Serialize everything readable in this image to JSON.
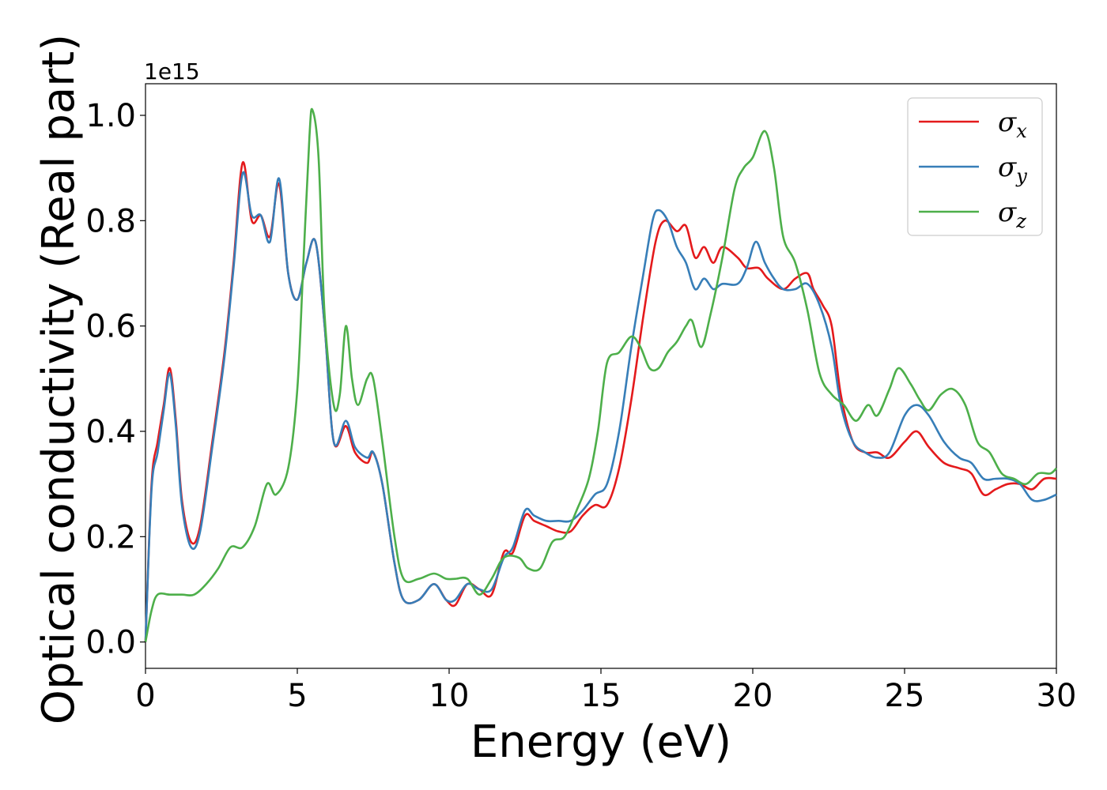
{
  "chart_data": {
    "type": "line",
    "title": "",
    "xlabel": "Energy (eV)",
    "ylabel": "Optical conductivity (Real part)",
    "y_offset_text": "1e15",
    "xlim": [
      0,
      30
    ],
    "ylim": [
      -0.05,
      1.06
    ],
    "x_ticks": [
      0,
      5,
      10,
      15,
      20,
      25,
      30
    ],
    "x_tick_labels": [
      "0",
      "5",
      "10",
      "15",
      "20",
      "25",
      "30"
    ],
    "y_ticks": [
      0.0,
      0.2,
      0.4,
      0.6,
      0.8,
      1.0
    ],
    "y_tick_labels": [
      "0.0",
      "0.2",
      "0.4",
      "0.6",
      "0.8",
      "1.0"
    ],
    "grid": false,
    "legend_position": "top-right",
    "series": [
      {
        "name": "σx",
        "legend_symbol": "σ",
        "legend_subscript": "x",
        "color": "#e41a1c",
        "points": [
          [
            0,
            0
          ],
          [
            0.2,
            0.3
          ],
          [
            0.4,
            0.38
          ],
          [
            0.6,
            0.45
          ],
          [
            0.8,
            0.52
          ],
          [
            1.0,
            0.42
          ],
          [
            1.2,
            0.27
          ],
          [
            1.5,
            0.19
          ],
          [
            1.8,
            0.22
          ],
          [
            2.2,
            0.38
          ],
          [
            2.6,
            0.55
          ],
          [
            2.9,
            0.72
          ],
          [
            3.2,
            0.91
          ],
          [
            3.5,
            0.8
          ],
          [
            3.8,
            0.81
          ],
          [
            4.1,
            0.77
          ],
          [
            4.4,
            0.87
          ],
          [
            4.7,
            0.7
          ],
          [
            5.0,
            0.65
          ],
          [
            5.3,
            0.72
          ],
          [
            5.6,
            0.76
          ],
          [
            5.9,
            0.6
          ],
          [
            6.2,
            0.38
          ],
          [
            6.6,
            0.41
          ],
          [
            6.9,
            0.36
          ],
          [
            7.3,
            0.34
          ],
          [
            7.5,
            0.36
          ],
          [
            7.8,
            0.3
          ],
          [
            8.2,
            0.15
          ],
          [
            8.5,
            0.08
          ],
          [
            9.0,
            0.08
          ],
          [
            9.5,
            0.11
          ],
          [
            9.9,
            0.08
          ],
          [
            10.2,
            0.07
          ],
          [
            10.6,
            0.11
          ],
          [
            11.0,
            0.1
          ],
          [
            11.4,
            0.09
          ],
          [
            11.8,
            0.17
          ],
          [
            12.1,
            0.17
          ],
          [
            12.5,
            0.24
          ],
          [
            12.8,
            0.23
          ],
          [
            13.2,
            0.22
          ],
          [
            13.6,
            0.21
          ],
          [
            14.0,
            0.21
          ],
          [
            14.4,
            0.24
          ],
          [
            14.8,
            0.26
          ],
          [
            15.2,
            0.26
          ],
          [
            15.6,
            0.33
          ],
          [
            16.0,
            0.46
          ],
          [
            16.4,
            0.62
          ],
          [
            16.8,
            0.76
          ],
          [
            17.1,
            0.8
          ],
          [
            17.5,
            0.78
          ],
          [
            17.8,
            0.79
          ],
          [
            18.1,
            0.73
          ],
          [
            18.4,
            0.75
          ],
          [
            18.7,
            0.72
          ],
          [
            19.0,
            0.75
          ],
          [
            19.5,
            0.73
          ],
          [
            19.8,
            0.71
          ],
          [
            20.2,
            0.71
          ],
          [
            20.5,
            0.69
          ],
          [
            21.0,
            0.67
          ],
          [
            21.4,
            0.69
          ],
          [
            21.8,
            0.7
          ],
          [
            22.0,
            0.67
          ],
          [
            22.3,
            0.64
          ],
          [
            22.6,
            0.6
          ],
          [
            22.9,
            0.47
          ],
          [
            23.3,
            0.38
          ],
          [
            23.7,
            0.36
          ],
          [
            24.1,
            0.36
          ],
          [
            24.5,
            0.35
          ],
          [
            25.0,
            0.38
          ],
          [
            25.4,
            0.4
          ],
          [
            25.8,
            0.37
          ],
          [
            26.3,
            0.34
          ],
          [
            26.8,
            0.33
          ],
          [
            27.2,
            0.32
          ],
          [
            27.6,
            0.28
          ],
          [
            28.0,
            0.29
          ],
          [
            28.4,
            0.3
          ],
          [
            28.8,
            0.3
          ],
          [
            29.2,
            0.29
          ],
          [
            29.6,
            0.31
          ],
          [
            30.0,
            0.31
          ]
        ]
      },
      {
        "name": "σy",
        "legend_symbol": "σ",
        "legend_subscript": "y",
        "color": "#377eb8",
        "points": [
          [
            0,
            0
          ],
          [
            0.2,
            0.29
          ],
          [
            0.4,
            0.36
          ],
          [
            0.6,
            0.44
          ],
          [
            0.8,
            0.51
          ],
          [
            1.0,
            0.41
          ],
          [
            1.2,
            0.26
          ],
          [
            1.5,
            0.18
          ],
          [
            1.8,
            0.21
          ],
          [
            2.2,
            0.37
          ],
          [
            2.6,
            0.54
          ],
          [
            2.9,
            0.71
          ],
          [
            3.2,
            0.89
          ],
          [
            3.5,
            0.81
          ],
          [
            3.8,
            0.81
          ],
          [
            4.1,
            0.76
          ],
          [
            4.4,
            0.88
          ],
          [
            4.7,
            0.7
          ],
          [
            5.0,
            0.65
          ],
          [
            5.3,
            0.72
          ],
          [
            5.6,
            0.76
          ],
          [
            5.9,
            0.6
          ],
          [
            6.2,
            0.38
          ],
          [
            6.6,
            0.42
          ],
          [
            6.9,
            0.37
          ],
          [
            7.3,
            0.35
          ],
          [
            7.5,
            0.36
          ],
          [
            7.8,
            0.3
          ],
          [
            8.2,
            0.15
          ],
          [
            8.5,
            0.08
          ],
          [
            9.0,
            0.08
          ],
          [
            9.5,
            0.11
          ],
          [
            9.9,
            0.08
          ],
          [
            10.2,
            0.08
          ],
          [
            10.6,
            0.11
          ],
          [
            11.0,
            0.1
          ],
          [
            11.4,
            0.1
          ],
          [
            11.8,
            0.16
          ],
          [
            12.1,
            0.18
          ],
          [
            12.5,
            0.25
          ],
          [
            12.8,
            0.24
          ],
          [
            13.2,
            0.23
          ],
          [
            13.6,
            0.23
          ],
          [
            14.0,
            0.23
          ],
          [
            14.4,
            0.25
          ],
          [
            14.8,
            0.28
          ],
          [
            15.2,
            0.3
          ],
          [
            15.6,
            0.4
          ],
          [
            16.0,
            0.56
          ],
          [
            16.4,
            0.7
          ],
          [
            16.7,
            0.8
          ],
          [
            16.9,
            0.82
          ],
          [
            17.2,
            0.8
          ],
          [
            17.5,
            0.75
          ],
          [
            17.8,
            0.72
          ],
          [
            18.1,
            0.67
          ],
          [
            18.4,
            0.69
          ],
          [
            18.7,
            0.67
          ],
          [
            19.0,
            0.68
          ],
          [
            19.5,
            0.68
          ],
          [
            19.8,
            0.71
          ],
          [
            20.1,
            0.76
          ],
          [
            20.4,
            0.72
          ],
          [
            20.7,
            0.69
          ],
          [
            21.0,
            0.67
          ],
          [
            21.4,
            0.67
          ],
          [
            21.8,
            0.68
          ],
          [
            22.2,
            0.64
          ],
          [
            22.6,
            0.56
          ],
          [
            22.9,
            0.45
          ],
          [
            23.3,
            0.38
          ],
          [
            23.7,
            0.36
          ],
          [
            24.1,
            0.35
          ],
          [
            24.5,
            0.36
          ],
          [
            25.0,
            0.43
          ],
          [
            25.4,
            0.45
          ],
          [
            25.8,
            0.43
          ],
          [
            26.3,
            0.38
          ],
          [
            26.8,
            0.35
          ],
          [
            27.2,
            0.34
          ],
          [
            27.6,
            0.31
          ],
          [
            28.0,
            0.31
          ],
          [
            28.4,
            0.31
          ],
          [
            28.8,
            0.3
          ],
          [
            29.2,
            0.27
          ],
          [
            29.6,
            0.27
          ],
          [
            30.0,
            0.28
          ]
        ]
      },
      {
        "name": "σz",
        "legend_symbol": "σ",
        "legend_subscript": "z",
        "color": "#4daf4a",
        "points": [
          [
            0,
            0
          ],
          [
            0.2,
            0.06
          ],
          [
            0.4,
            0.09
          ],
          [
            0.8,
            0.09
          ],
          [
            1.2,
            0.09
          ],
          [
            1.6,
            0.09
          ],
          [
            2.0,
            0.11
          ],
          [
            2.4,
            0.14
          ],
          [
            2.8,
            0.18
          ],
          [
            3.2,
            0.18
          ],
          [
            3.6,
            0.22
          ],
          [
            4.0,
            0.3
          ],
          [
            4.3,
            0.28
          ],
          [
            4.7,
            0.33
          ],
          [
            5.0,
            0.48
          ],
          [
            5.2,
            0.72
          ],
          [
            5.4,
            0.96
          ],
          [
            5.5,
            1.01
          ],
          [
            5.7,
            0.92
          ],
          [
            5.9,
            0.62
          ],
          [
            6.2,
            0.45
          ],
          [
            6.4,
            0.47
          ],
          [
            6.6,
            0.6
          ],
          [
            6.8,
            0.5
          ],
          [
            7.0,
            0.45
          ],
          [
            7.3,
            0.5
          ],
          [
            7.5,
            0.5
          ],
          [
            7.8,
            0.38
          ],
          [
            8.2,
            0.2
          ],
          [
            8.5,
            0.12
          ],
          [
            9.0,
            0.12
          ],
          [
            9.5,
            0.13
          ],
          [
            9.9,
            0.12
          ],
          [
            10.2,
            0.12
          ],
          [
            10.6,
            0.12
          ],
          [
            11.0,
            0.09
          ],
          [
            11.4,
            0.12
          ],
          [
            11.8,
            0.16
          ],
          [
            12.3,
            0.16
          ],
          [
            12.6,
            0.14
          ],
          [
            13.0,
            0.14
          ],
          [
            13.4,
            0.19
          ],
          [
            13.8,
            0.2
          ],
          [
            14.2,
            0.25
          ],
          [
            14.6,
            0.31
          ],
          [
            14.9,
            0.4
          ],
          [
            15.2,
            0.53
          ],
          [
            15.6,
            0.55
          ],
          [
            16.0,
            0.58
          ],
          [
            16.3,
            0.56
          ],
          [
            16.6,
            0.52
          ],
          [
            16.9,
            0.52
          ],
          [
            17.2,
            0.55
          ],
          [
            17.5,
            0.57
          ],
          [
            17.8,
            0.6
          ],
          [
            18.0,
            0.61
          ],
          [
            18.3,
            0.56
          ],
          [
            18.6,
            0.62
          ],
          [
            19.0,
            0.73
          ],
          [
            19.4,
            0.86
          ],
          [
            19.7,
            0.9
          ],
          [
            20.0,
            0.92
          ],
          [
            20.4,
            0.97
          ],
          [
            20.7,
            0.9
          ],
          [
            21.0,
            0.77
          ],
          [
            21.4,
            0.72
          ],
          [
            21.8,
            0.63
          ],
          [
            22.2,
            0.51
          ],
          [
            22.6,
            0.47
          ],
          [
            23.0,
            0.45
          ],
          [
            23.4,
            0.42
          ],
          [
            23.8,
            0.45
          ],
          [
            24.1,
            0.43
          ],
          [
            24.5,
            0.48
          ],
          [
            24.8,
            0.52
          ],
          [
            25.2,
            0.49
          ],
          [
            25.5,
            0.46
          ],
          [
            25.8,
            0.44
          ],
          [
            26.2,
            0.47
          ],
          [
            26.6,
            0.48
          ],
          [
            27.0,
            0.45
          ],
          [
            27.4,
            0.38
          ],
          [
            27.8,
            0.36
          ],
          [
            28.2,
            0.32
          ],
          [
            28.6,
            0.31
          ],
          [
            29.0,
            0.3
          ],
          [
            29.4,
            0.32
          ],
          [
            29.8,
            0.32
          ],
          [
            30.0,
            0.33
          ]
        ]
      }
    ]
  }
}
